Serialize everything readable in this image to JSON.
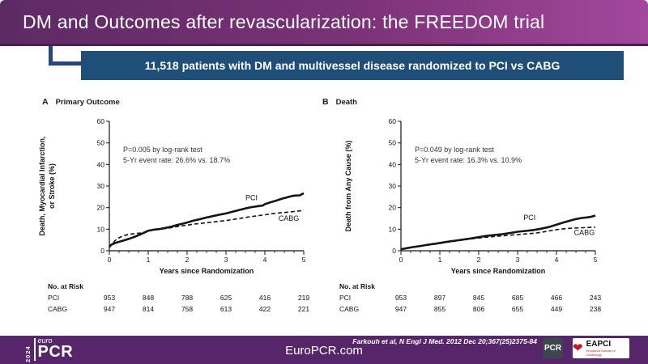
{
  "header": {
    "title": "DM and Outcomes after revascularization: the FREEDOM trial"
  },
  "banner": {
    "text": "11,518 patients with DM and multivessel disease randomized to PCI vs CABG"
  },
  "footer": {
    "logo_year": "2024",
    "logo_euro": "euro",
    "logo_pcr": "PCR",
    "site": "EuroPCR.com",
    "citation": "Farkouh et al, N Engl J Med. 2012 Dec 20;367(25)2375-84",
    "pcr_badge": "PCR",
    "eapci_name": "EAPCI",
    "eapci_sub": "European Society of Cardiology",
    "bg_color": "#57266a"
  },
  "colors": {
    "header_gradient_left": "#5d2a64",
    "header_gradient_right": "#a3479c",
    "banner_blue": "#1f4e79",
    "curve_black": "#141414"
  },
  "chart_data": [
    {
      "type": "line",
      "panel_letter": "A",
      "title": "Primary Outcome",
      "ylabel_lines": [
        "Death, Myocardial Infarction,",
        "or Stroke (%)"
      ],
      "xlabel": "Years since Randomization",
      "ylim": [
        0,
        60
      ],
      "yticks": [
        0,
        10,
        20,
        30,
        40,
        50,
        60
      ],
      "xlim": [
        0,
        5
      ],
      "xticks": [
        0,
        1,
        2,
        3,
        4,
        5
      ],
      "minor_x_step": 0.25,
      "annotation": [
        "P=0.005 by log-rank test",
        "5-Yr event rate: 26.6% vs. 18.7%"
      ],
      "series": [
        {
          "name": "PCI",
          "style": "solid",
          "label_pos": [
            3.5,
            23.5
          ],
          "points": [
            [
              0,
              1.8
            ],
            [
              0.05,
              2.8
            ],
            [
              0.15,
              3.6
            ],
            [
              0.3,
              4.4
            ],
            [
              0.45,
              5.2
            ],
            [
              0.6,
              6.1
            ],
            [
              0.75,
              7.2
            ],
            [
              0.9,
              8.4
            ],
            [
              1.0,
              9.3
            ],
            [
              1.15,
              9.8
            ],
            [
              1.3,
              10.1
            ],
            [
              1.45,
              10.6
            ],
            [
              1.6,
              11.2
            ],
            [
              1.75,
              12.0
            ],
            [
              1.9,
              12.6
            ],
            [
              2.0,
              13.1
            ],
            [
              2.15,
              13.9
            ],
            [
              2.3,
              14.5
            ],
            [
              2.5,
              15.4
            ],
            [
              2.65,
              16.0
            ],
            [
              2.8,
              16.6
            ],
            [
              3.0,
              17.3
            ],
            [
              3.15,
              18.0
            ],
            [
              3.3,
              18.7
            ],
            [
              3.5,
              19.6
            ],
            [
              3.65,
              20.2
            ],
            [
              3.8,
              20.6
            ],
            [
              3.95,
              21.0
            ],
            [
              4.0,
              21.6
            ],
            [
              4.15,
              22.5
            ],
            [
              4.3,
              23.3
            ],
            [
              4.45,
              24.2
            ],
            [
              4.6,
              24.9
            ],
            [
              4.7,
              25.4
            ],
            [
              4.8,
              25.6
            ],
            [
              4.9,
              25.7
            ],
            [
              4.95,
              26.2
            ],
            [
              5,
              26.6
            ]
          ]
        },
        {
          "name": "CABG",
          "style": "dashed",
          "label_pos": [
            4.35,
            13.9
          ],
          "points": [
            [
              0,
              1.5
            ],
            [
              0.07,
              3.2
            ],
            [
              0.15,
              4.8
            ],
            [
              0.25,
              6.0
            ],
            [
              0.35,
              6.9
            ],
            [
              0.5,
              7.6
            ],
            [
              0.65,
              7.9
            ],
            [
              0.8,
              8.2
            ],
            [
              0.95,
              8.8
            ],
            [
              1.0,
              9.2
            ],
            [
              1.15,
              9.7
            ],
            [
              1.3,
              10.0
            ],
            [
              1.5,
              10.4
            ],
            [
              1.65,
              10.9
            ],
            [
              1.8,
              11.4
            ],
            [
              2.0,
              11.9
            ],
            [
              2.2,
              12.4
            ],
            [
              2.4,
              12.8
            ],
            [
              2.6,
              13.2
            ],
            [
              2.8,
              13.6
            ],
            [
              3.0,
              14.0
            ],
            [
              3.2,
              14.6
            ],
            [
              3.4,
              15.1
            ],
            [
              3.6,
              15.7
            ],
            [
              3.8,
              16.2
            ],
            [
              4.0,
              16.7
            ],
            [
              4.2,
              17.2
            ],
            [
              4.4,
              17.6
            ],
            [
              4.6,
              17.9
            ],
            [
              4.8,
              18.3
            ],
            [
              5,
              18.7
            ]
          ]
        }
      ],
      "at_risk": {
        "label": "No. at Risk",
        "rows": [
          {
            "name": "PCI",
            "values": [
              953,
              848,
              788,
              625,
              416,
              219
            ]
          },
          {
            "name": "CABG",
            "values": [
              947,
              814,
              758,
              613,
              422,
              221
            ]
          }
        ]
      }
    },
    {
      "type": "line",
      "panel_letter": "B",
      "title": "Death",
      "ylabel_lines": [
        "Death from Any Cause (%)"
      ],
      "xlabel": "Years since Randomization",
      "ylim": [
        0,
        60
      ],
      "yticks": [
        0,
        10,
        20,
        30,
        40,
        50,
        60
      ],
      "xlim": [
        0,
        5
      ],
      "xticks": [
        0,
        1,
        2,
        3,
        4,
        5
      ],
      "minor_x_step": 0.25,
      "annotation": [
        "P=0.049 by log-rank test",
        "5-Yr event rate: 16.3% vs. 10.9%"
      ],
      "series": [
        {
          "name": "PCI",
          "style": "solid",
          "label_pos": [
            3.15,
            14.3
          ],
          "points": [
            [
              0,
              0.7
            ],
            [
              0.15,
              1.2
            ],
            [
              0.3,
              1.7
            ],
            [
              0.5,
              2.2
            ],
            [
              0.7,
              2.8
            ],
            [
              0.9,
              3.3
            ],
            [
              1.0,
              3.6
            ],
            [
              1.2,
              4.2
            ],
            [
              1.4,
              4.7
            ],
            [
              1.6,
              5.2
            ],
            [
              1.8,
              5.7
            ],
            [
              2.0,
              6.3
            ],
            [
              2.2,
              6.9
            ],
            [
              2.4,
              7.3
            ],
            [
              2.6,
              7.7
            ],
            [
              2.8,
              8.2
            ],
            [
              3.0,
              8.8
            ],
            [
              3.2,
              9.2
            ],
            [
              3.4,
              9.6
            ],
            [
              3.6,
              10.2
            ],
            [
              3.8,
              11.0
            ],
            [
              4.0,
              12.1
            ],
            [
              4.2,
              13.2
            ],
            [
              4.35,
              14.0
            ],
            [
              4.5,
              14.7
            ],
            [
              4.65,
              15.2
            ],
            [
              4.8,
              15.5
            ],
            [
              4.9,
              15.8
            ],
            [
              5,
              16.3
            ]
          ]
        },
        {
          "name": "CABG",
          "style": "dashed",
          "label_pos": [
            4.45,
            7.3
          ],
          "points": [
            [
              0,
              0.7
            ],
            [
              0.2,
              1.3
            ],
            [
              0.4,
              1.8
            ],
            [
              0.6,
              2.4
            ],
            [
              0.8,
              2.9
            ],
            [
              1.0,
              3.4
            ],
            [
              1.2,
              4.0
            ],
            [
              1.4,
              4.5
            ],
            [
              1.6,
              5.0
            ],
            [
              1.8,
              5.5
            ],
            [
              2.0,
              5.9
            ],
            [
              2.2,
              6.3
            ],
            [
              2.4,
              6.6
            ],
            [
              2.6,
              6.9
            ],
            [
              2.8,
              7.2
            ],
            [
              3.0,
              7.5
            ],
            [
              3.2,
              7.8
            ],
            [
              3.4,
              8.1
            ],
            [
              3.6,
              8.5
            ],
            [
              3.8,
              9.2
            ],
            [
              4.0,
              9.8
            ],
            [
              4.2,
              10.2
            ],
            [
              4.4,
              10.5
            ],
            [
              4.6,
              10.6
            ],
            [
              4.8,
              10.8
            ],
            [
              5,
              10.9
            ]
          ]
        }
      ],
      "at_risk": {
        "label": "No. at Risk",
        "rows": [
          {
            "name": "PCI",
            "values": [
              953,
              897,
              845,
              685,
              466,
              243
            ]
          },
          {
            "name": "CABG",
            "values": [
              947,
              855,
              806,
              655,
              449,
              238
            ]
          }
        ]
      }
    }
  ]
}
